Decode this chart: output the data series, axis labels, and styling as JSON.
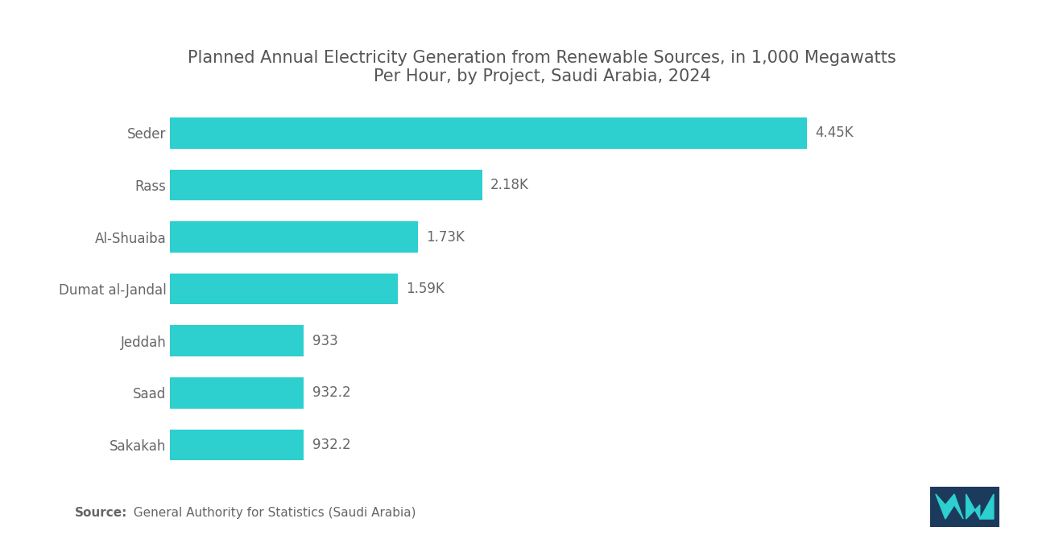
{
  "title": "Planned Annual Electricity Generation from Renewable Sources, in 1,000 Megawatts\nPer Hour, by Project, Saudi Arabia, 2024",
  "categories": [
    "Seder",
    "Rass",
    "Al-Shuaiba",
    "Dumat al-Jandal",
    "Jeddah",
    "Saad",
    "Sakakah"
  ],
  "values": [
    4450,
    2180,
    1730,
    1590,
    933,
    932.2,
    932.2
  ],
  "labels": [
    "4.45K",
    "2.18K",
    "1.73K",
    "1.59K",
    "933",
    "932.2",
    "932.2"
  ],
  "bar_color": "#2DCFCF",
  "background_color": "#ffffff",
  "title_color": "#555555",
  "label_color": "#666666",
  "source_bold": "Source:",
  "source_text": "  General Authority for Statistics (Saudi Arabia)",
  "title_fontsize": 15,
  "label_fontsize": 12,
  "axis_label_fontsize": 12,
  "source_fontsize": 11,
  "xlim": [
    0,
    5200
  ]
}
